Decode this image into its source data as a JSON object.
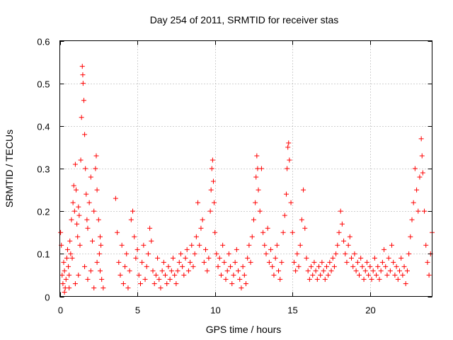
{
  "chart_data": {
    "type": "scatter",
    "title": "Day 254 of 2011, SRMTID for receiver stas",
    "xlabel": "GPS time / hours",
    "ylabel": "SRMTID / TECUs",
    "xlim": [
      0,
      24
    ],
    "ylim": [
      0,
      0.6
    ],
    "xticks": [
      0,
      5,
      10,
      15,
      20
    ],
    "xtick_labels": [
      "0",
      "5",
      "10",
      "15",
      "20"
    ],
    "yticks": [
      0,
      0.1,
      0.2,
      0.3,
      0.4,
      0.5,
      0.6
    ],
    "ytick_labels": [
      "0",
      "0.1",
      "0.2",
      "0.3",
      "0.4",
      "0.5",
      "0.6"
    ],
    "grid": true,
    "marker": "plus",
    "color": "#ff0000",
    "series": [
      {
        "name": "SRMTID",
        "points": [
          [
            0.05,
            0.15
          ],
          [
            0.1,
            0.12
          ],
          [
            0.15,
            0.05
          ],
          [
            0.2,
            0.03
          ],
          [
            0.25,
            0.08
          ],
          [
            0.3,
            0.06
          ],
          [
            0.35,
            0.02
          ],
          [
            0.4,
            0.04
          ],
          [
            0.45,
            0.09
          ],
          [
            0.5,
            0.11
          ],
          [
            0.55,
            0.07
          ],
          [
            0.6,
            0.05
          ],
          [
            0.65,
            0.13
          ],
          [
            0.7,
            0.1
          ],
          [
            0.75,
            0.18
          ],
          [
            0.8,
            0.09
          ],
          [
            0.85,
            0.22
          ],
          [
            0.9,
            0.26
          ],
          [
            0.95,
            0.2
          ],
          [
            1.0,
            0.31
          ],
          [
            1.05,
            0.25
          ],
          [
            1.1,
            0.17
          ],
          [
            1.15,
            0.14
          ],
          [
            1.2,
            0.21
          ],
          [
            1.25,
            0.19
          ],
          [
            1.3,
            0.12
          ],
          [
            1.35,
            0.32
          ],
          [
            1.4,
            0.42
          ],
          [
            1.45,
            0.54
          ],
          [
            1.48,
            0.52
          ],
          [
            1.5,
            0.5
          ],
          [
            1.55,
            0.46
          ],
          [
            1.6,
            0.38
          ],
          [
            1.65,
            0.3
          ],
          [
            1.7,
            0.24
          ],
          [
            1.75,
            0.18
          ],
          [
            1.8,
            0.16
          ],
          [
            1.9,
            0.22
          ],
          [
            2.0,
            0.28
          ],
          [
            2.1,
            0.13
          ],
          [
            2.2,
            0.2
          ],
          [
            2.3,
            0.3
          ],
          [
            2.35,
            0.33
          ],
          [
            2.4,
            0.25
          ],
          [
            2.5,
            0.18
          ],
          [
            2.55,
            0.1
          ],
          [
            2.6,
            0.06
          ],
          [
            2.65,
            0.12
          ],
          [
            2.7,
            0.04
          ],
          [
            2.8,
            0.02
          ],
          [
            0.3,
            0.01
          ],
          [
            0.6,
            0.02
          ],
          [
            1.0,
            0.03
          ],
          [
            1.2,
            0.05
          ],
          [
            1.6,
            0.07
          ],
          [
            1.8,
            0.04
          ],
          [
            2.0,
            0.06
          ],
          [
            2.2,
            0.02
          ],
          [
            2.4,
            0.08
          ],
          [
            2.6,
            0.14
          ],
          [
            3.6,
            0.23
          ],
          [
            3.7,
            0.15
          ],
          [
            3.8,
            0.08
          ],
          [
            3.9,
            0.05
          ],
          [
            4.0,
            0.12
          ],
          [
            4.1,
            0.03
          ],
          [
            4.2,
            0.07
          ],
          [
            4.3,
            0.1
          ],
          [
            4.4,
            0.02
          ],
          [
            4.5,
            0.06
          ],
          [
            4.6,
            0.18
          ],
          [
            4.7,
            0.2
          ],
          [
            4.8,
            0.14
          ],
          [
            4.9,
            0.09
          ],
          [
            5.0,
            0.11
          ],
          [
            5.1,
            0.05
          ],
          [
            5.2,
            0.03
          ],
          [
            5.3,
            0.08
          ],
          [
            5.4,
            0.12
          ],
          [
            5.5,
            0.04
          ],
          [
            5.6,
            0.07
          ],
          [
            5.7,
            0.1
          ],
          [
            5.8,
            0.16
          ],
          [
            5.9,
            0.13
          ],
          [
            6.0,
            0.06
          ],
          [
            6.1,
            0.03
          ],
          [
            6.2,
            0.05
          ],
          [
            6.3,
            0.09
          ],
          [
            6.4,
            0.04
          ],
          [
            6.5,
            0.02
          ],
          [
            6.6,
            0.06
          ],
          [
            6.7,
            0.08
          ],
          [
            6.8,
            0.05
          ],
          [
            6.9,
            0.03
          ],
          [
            7.0,
            0.07
          ],
          [
            7.1,
            0.04
          ],
          [
            7.2,
            0.06
          ],
          [
            7.3,
            0.09
          ],
          [
            7.4,
            0.05
          ],
          [
            7.5,
            0.03
          ],
          [
            7.6,
            0.06
          ],
          [
            7.7,
            0.08
          ],
          [
            7.8,
            0.1
          ],
          [
            7.9,
            0.07
          ],
          [
            8.0,
            0.05
          ],
          [
            8.1,
            0.09
          ],
          [
            8.2,
            0.11
          ],
          [
            8.3,
            0.06
          ],
          [
            8.4,
            0.08
          ],
          [
            8.5,
            0.12
          ],
          [
            8.6,
            0.07
          ],
          [
            8.7,
            0.1
          ],
          [
            8.8,
            0.14
          ],
          [
            8.9,
            0.22
          ],
          [
            9.0,
            0.12
          ],
          [
            9.1,
            0.16
          ],
          [
            9.2,
            0.18
          ],
          [
            9.3,
            0.08
          ],
          [
            9.4,
            0.11
          ],
          [
            9.5,
            0.06
          ],
          [
            9.6,
            0.09
          ],
          [
            9.7,
            0.2
          ],
          [
            9.75,
            0.25
          ],
          [
            9.8,
            0.3
          ],
          [
            9.85,
            0.32
          ],
          [
            9.9,
            0.27
          ],
          [
            9.95,
            0.22
          ],
          [
            10.0,
            0.15
          ],
          [
            10.1,
            0.1
          ],
          [
            10.2,
            0.07
          ],
          [
            10.3,
            0.09
          ],
          [
            10.4,
            0.05
          ],
          [
            10.5,
            0.12
          ],
          [
            10.6,
            0.08
          ],
          [
            10.7,
            0.04
          ],
          [
            10.8,
            0.06
          ],
          [
            10.9,
            0.1
          ],
          [
            11.0,
            0.07
          ],
          [
            11.1,
            0.03
          ],
          [
            11.2,
            0.05
          ],
          [
            11.3,
            0.08
          ],
          [
            11.4,
            0.11
          ],
          [
            11.5,
            0.06
          ],
          [
            11.6,
            0.04
          ],
          [
            11.7,
            0.02
          ],
          [
            11.8,
            0.07
          ],
          [
            11.9,
            0.05
          ],
          [
            12.0,
            0.03
          ],
          [
            12.1,
            0.09
          ],
          [
            12.2,
            0.12
          ],
          [
            12.3,
            0.08
          ],
          [
            12.4,
            0.14
          ],
          [
            12.5,
            0.18
          ],
          [
            12.6,
            0.22
          ],
          [
            12.65,
            0.28
          ],
          [
            12.7,
            0.33
          ],
          [
            12.75,
            0.3
          ],
          [
            12.8,
            0.25
          ],
          [
            12.9,
            0.2
          ],
          [
            13.0,
            0.3
          ],
          [
            13.1,
            0.15
          ],
          [
            13.2,
            0.12
          ],
          [
            13.3,
            0.1
          ],
          [
            13.4,
            0.16
          ],
          [
            13.5,
            0.08
          ],
          [
            13.6,
            0.11
          ],
          [
            13.7,
            0.07
          ],
          [
            13.8,
            0.05
          ],
          [
            13.9,
            0.09
          ],
          [
            14.0,
            0.12
          ],
          [
            14.1,
            0.06
          ],
          [
            14.2,
            0.04
          ],
          [
            14.3,
            0.08
          ],
          [
            14.4,
            0.15
          ],
          [
            14.5,
            0.19
          ],
          [
            14.6,
            0.24
          ],
          [
            14.65,
            0.3
          ],
          [
            14.7,
            0.35
          ],
          [
            14.75,
            0.36
          ],
          [
            14.8,
            0.32
          ],
          [
            14.9,
            0.22
          ],
          [
            15.0,
            0.15
          ],
          [
            15.1,
            0.08
          ],
          [
            15.2,
            0.06
          ],
          [
            15.3,
            0.1
          ],
          [
            15.4,
            0.07
          ],
          [
            15.5,
            0.12
          ],
          [
            15.6,
            0.18
          ],
          [
            15.7,
            0.25
          ],
          [
            15.8,
            0.16
          ],
          [
            15.9,
            0.09
          ],
          [
            16.0,
            0.06
          ],
          [
            16.1,
            0.04
          ],
          [
            16.2,
            0.07
          ],
          [
            16.3,
            0.05
          ],
          [
            16.4,
            0.08
          ],
          [
            16.5,
            0.06
          ],
          [
            16.6,
            0.04
          ],
          [
            16.7,
            0.07
          ],
          [
            16.8,
            0.05
          ],
          [
            16.9,
            0.08
          ],
          [
            17.0,
            0.06
          ],
          [
            17.1,
            0.04
          ],
          [
            17.2,
            0.07
          ],
          [
            17.3,
            0.05
          ],
          [
            17.4,
            0.08
          ],
          [
            17.5,
            0.06
          ],
          [
            17.6,
            0.09
          ],
          [
            17.7,
            0.07
          ],
          [
            17.8,
            0.1
          ],
          [
            17.9,
            0.12
          ],
          [
            18.0,
            0.15
          ],
          [
            18.1,
            0.2
          ],
          [
            18.2,
            0.17
          ],
          [
            18.3,
            0.13
          ],
          [
            18.4,
            0.1
          ],
          [
            18.5,
            0.08
          ],
          [
            18.6,
            0.12
          ],
          [
            18.7,
            0.14
          ],
          [
            18.8,
            0.09
          ],
          [
            18.9,
            0.07
          ],
          [
            19.0,
            0.1
          ],
          [
            19.1,
            0.06
          ],
          [
            19.2,
            0.08
          ],
          [
            19.3,
            0.05
          ],
          [
            19.4,
            0.09
          ],
          [
            19.5,
            0.07
          ],
          [
            19.6,
            0.04
          ],
          [
            19.7,
            0.06
          ],
          [
            19.8,
            0.08
          ],
          [
            19.9,
            0.05
          ],
          [
            20.0,
            0.07
          ],
          [
            20.1,
            0.04
          ],
          [
            20.2,
            0.06
          ],
          [
            20.3,
            0.09
          ],
          [
            20.4,
            0.05
          ],
          [
            20.5,
            0.07
          ],
          [
            20.6,
            0.04
          ],
          [
            20.7,
            0.06
          ],
          [
            20.8,
            0.08
          ],
          [
            20.9,
            0.11
          ],
          [
            21.0,
            0.07
          ],
          [
            21.1,
            0.05
          ],
          [
            21.2,
            0.09
          ],
          [
            21.3,
            0.06
          ],
          [
            21.4,
            0.12
          ],
          [
            21.5,
            0.08
          ],
          [
            21.6,
            0.05
          ],
          [
            21.7,
            0.07
          ],
          [
            21.8,
            0.04
          ],
          [
            21.9,
            0.06
          ],
          [
            22.0,
            0.09
          ],
          [
            22.1,
            0.05
          ],
          [
            22.2,
            0.07
          ],
          [
            22.3,
            0.03
          ],
          [
            22.4,
            0.06
          ],
          [
            22.5,
            0.1
          ],
          [
            22.6,
            0.14
          ],
          [
            22.7,
            0.18
          ],
          [
            22.8,
            0.22
          ],
          [
            22.9,
            0.3
          ],
          [
            23.0,
            0.25
          ],
          [
            23.1,
            0.2
          ],
          [
            23.2,
            0.28
          ],
          [
            23.3,
            0.37
          ],
          [
            23.35,
            0.33
          ],
          [
            23.4,
            0.29
          ],
          [
            23.5,
            0.2
          ],
          [
            23.6,
            0.12
          ],
          [
            23.7,
            0.08
          ],
          [
            23.8,
            0.05
          ],
          [
            23.9,
            0.1
          ],
          [
            24.0,
            0.15
          ]
        ]
      }
    ]
  }
}
